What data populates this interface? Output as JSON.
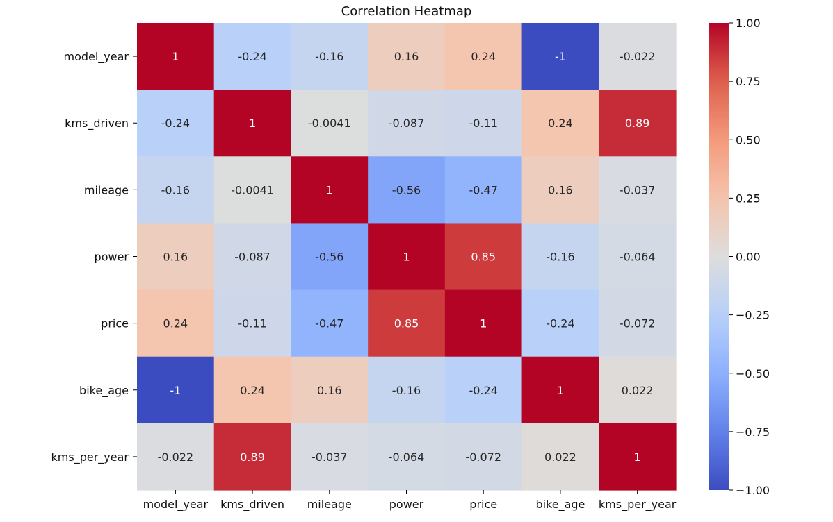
{
  "chart_data": {
    "type": "heatmap",
    "title": "Correlation Heatmap",
    "xlabel": "",
    "ylabel": "",
    "row_labels": [
      "model_year",
      "kms_driven",
      "mileage",
      "power",
      "price",
      "bike_age",
      "kms_per_year"
    ],
    "col_labels": [
      "model_year",
      "kms_driven",
      "mileage",
      "power",
      "price",
      "bike_age",
      "kms_per_year"
    ],
    "values": [
      [
        1,
        -0.24,
        -0.16,
        0.16,
        0.24,
        -1,
        -0.022
      ],
      [
        -0.24,
        1,
        -0.0041,
        -0.087,
        -0.11,
        0.24,
        0.89
      ],
      [
        -0.16,
        -0.0041,
        1,
        -0.56,
        -0.47,
        0.16,
        -0.037
      ],
      [
        0.16,
        -0.087,
        -0.56,
        1,
        0.85,
        -0.16,
        -0.064
      ],
      [
        0.24,
        -0.11,
        -0.47,
        0.85,
        1,
        -0.24,
        -0.072
      ],
      [
        -1,
        0.24,
        0.16,
        -0.16,
        -0.24,
        1,
        0.022
      ],
      [
        -0.022,
        0.89,
        -0.037,
        -0.064,
        -0.072,
        0.022,
        1
      ]
    ],
    "cell_labels": [
      [
        "1",
        "-0.24",
        "-0.16",
        "0.16",
        "0.24",
        "-1",
        "-0.022"
      ],
      [
        "-0.24",
        "1",
        "-0.0041",
        "-0.087",
        "-0.11",
        "0.24",
        "0.89"
      ],
      [
        "-0.16",
        "-0.0041",
        "1",
        "-0.56",
        "-0.47",
        "0.16",
        "-0.037"
      ],
      [
        "0.16",
        "-0.087",
        "-0.56",
        "1",
        "0.85",
        "-0.16",
        "-0.064"
      ],
      [
        "0.24",
        "-0.11",
        "-0.47",
        "0.85",
        "1",
        "-0.24",
        "-0.072"
      ],
      [
        "-1",
        "0.24",
        "0.16",
        "-0.16",
        "-0.24",
        "1",
        "0.022"
      ],
      [
        "-0.022",
        "0.89",
        "-0.037",
        "-0.064",
        "-0.072",
        "0.022",
        "1"
      ]
    ],
    "colormap": "coolwarm",
    "vmin": -1.0,
    "vmax": 1.0,
    "colorbar_ticks": [
      1.0,
      0.75,
      0.5,
      0.25,
      0.0,
      -0.25,
      -0.5,
      -0.75,
      -1.0
    ],
    "colorbar_tick_labels": [
      "1.00",
      "0.75",
      "0.50",
      "0.25",
      "0.00",
      "−0.25",
      "−0.50",
      "−0.75",
      "−1.00"
    ],
    "grid": false,
    "legend": "colorbar-right"
  }
}
